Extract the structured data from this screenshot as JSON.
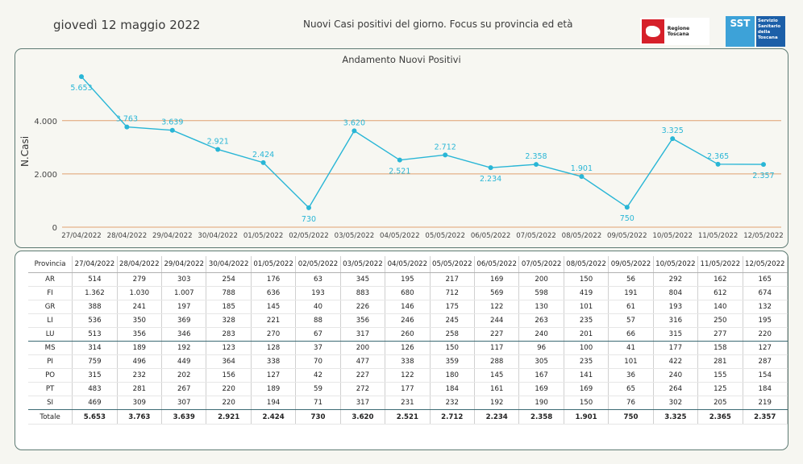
{
  "header": {
    "date": "giovedì 12 maggio 2022",
    "title": "Nuovi Casi positivi del giorno. Focus su provincia ed età",
    "logo_rt_text": "Regione Toscana",
    "logo_sst_short": "SST",
    "logo_sst_text": "Servizio Sanitario della Toscana"
  },
  "colors": {
    "line": "#29b6d6",
    "gridline": "#e0a070",
    "border": "#5d7a73"
  },
  "chart_data": {
    "type": "line",
    "title": "Andamento Nuovi Positivi",
    "xlabel": "",
    "ylabel": "N.Casi",
    "ylim": [
      0,
      5900
    ],
    "yticks": [
      0,
      2000,
      4000
    ],
    "ytick_labels": [
      "0",
      "2.000",
      "4.000"
    ],
    "x": [
      "27/04/2022",
      "28/04/2022",
      "29/04/2022",
      "30/04/2022",
      "01/05/2022",
      "02/05/2022",
      "03/05/2022",
      "04/05/2022",
      "05/05/2022",
      "06/05/2022",
      "07/05/2022",
      "08/05/2022",
      "09/05/2022",
      "10/05/2022",
      "11/05/2022",
      "12/05/2022"
    ],
    "values": [
      5653,
      3763,
      3639,
      2921,
      2424,
      730,
      3620,
      2521,
      2712,
      2234,
      2358,
      1901,
      750,
      3325,
      2365,
      2357
    ],
    "value_labels": [
      "5.653",
      "3.763",
      "3.639",
      "2.921",
      "2.424",
      "730",
      "3.620",
      "2.521",
      "2.712",
      "2.234",
      "2.358",
      "1.901",
      "750",
      "3.325",
      "2.365",
      "2.357"
    ],
    "label_pos": [
      "below",
      "above",
      "above",
      "above",
      "above",
      "below",
      "above",
      "below",
      "above",
      "below",
      "above",
      "above",
      "below",
      "above",
      "above",
      "below"
    ],
    "grid": true
  },
  "table": {
    "corner": "Provincia",
    "dates": [
      "27/04/2022",
      "28/04/2022",
      "29/04/2022",
      "30/04/2022",
      "01/05/2022",
      "02/05/2022",
      "03/05/2022",
      "04/05/2022",
      "05/05/2022",
      "06/05/2022",
      "07/05/2022",
      "08/05/2022",
      "09/05/2022",
      "10/05/2022",
      "11/05/2022",
      "12/05/2022"
    ],
    "rows": [
      {
        "p": "AR",
        "v": [
          "514",
          "279",
          "303",
          "254",
          "176",
          "63",
          "345",
          "195",
          "217",
          "169",
          "200",
          "150",
          "56",
          "292",
          "162",
          "165"
        ]
      },
      {
        "p": "FI",
        "v": [
          "1.362",
          "1.030",
          "1.007",
          "788",
          "636",
          "193",
          "883",
          "680",
          "712",
          "569",
          "598",
          "419",
          "191",
          "804",
          "612",
          "674"
        ]
      },
      {
        "p": "GR",
        "v": [
          "388",
          "241",
          "197",
          "185",
          "145",
          "40",
          "226",
          "146",
          "175",
          "122",
          "130",
          "101",
          "61",
          "193",
          "140",
          "132"
        ]
      },
      {
        "p": "LI",
        "v": [
          "536",
          "350",
          "369",
          "328",
          "221",
          "88",
          "356",
          "246",
          "245",
          "244",
          "263",
          "235",
          "57",
          "316",
          "250",
          "195"
        ]
      },
      {
        "p": "LU",
        "v": [
          "513",
          "356",
          "346",
          "283",
          "270",
          "67",
          "317",
          "260",
          "258",
          "227",
          "240",
          "201",
          "66",
          "315",
          "277",
          "220"
        ]
      },
      {
        "p": "MS",
        "v": [
          "314",
          "189",
          "192",
          "123",
          "128",
          "37",
          "200",
          "126",
          "150",
          "117",
          "96",
          "100",
          "41",
          "177",
          "158",
          "127"
        ]
      },
      {
        "p": "PI",
        "v": [
          "759",
          "496",
          "449",
          "364",
          "338",
          "70",
          "477",
          "338",
          "359",
          "288",
          "305",
          "235",
          "101",
          "422",
          "281",
          "287"
        ]
      },
      {
        "p": "PO",
        "v": [
          "315",
          "232",
          "202",
          "156",
          "127",
          "42",
          "227",
          "122",
          "180",
          "145",
          "167",
          "141",
          "36",
          "240",
          "155",
          "154"
        ]
      },
      {
        "p": "PT",
        "v": [
          "483",
          "281",
          "267",
          "220",
          "189",
          "59",
          "272",
          "177",
          "184",
          "161",
          "169",
          "169",
          "65",
          "264",
          "125",
          "184"
        ]
      },
      {
        "p": "SI",
        "v": [
          "469",
          "309",
          "307",
          "220",
          "194",
          "71",
          "317",
          "231",
          "232",
          "192",
          "190",
          "150",
          "76",
          "302",
          "205",
          "219"
        ]
      }
    ],
    "total": {
      "p": "Totale",
      "v": [
        "5.653",
        "3.763",
        "3.639",
        "2.921",
        "2.424",
        "730",
        "3.620",
        "2.521",
        "2.712",
        "2.234",
        "2.358",
        "1.901",
        "750",
        "3.325",
        "2.365",
        "2.357"
      ]
    }
  }
}
